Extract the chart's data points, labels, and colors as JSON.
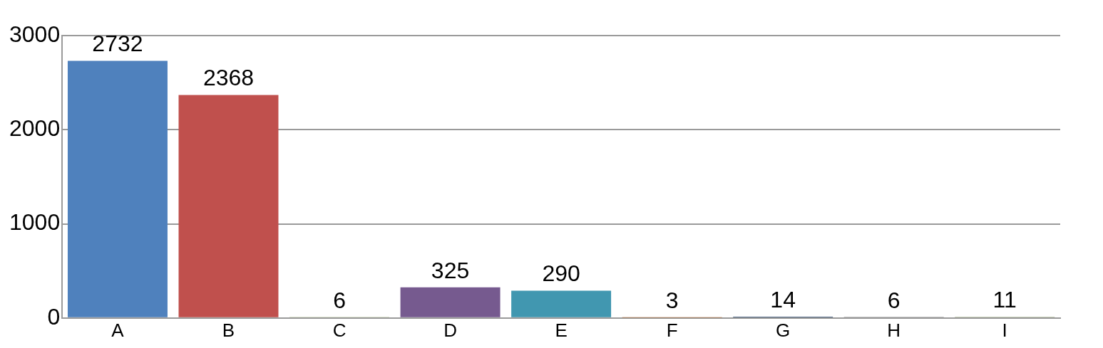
{
  "chart_data": {
    "type": "bar",
    "categories": [
      "A",
      "B",
      "C",
      "D",
      "E",
      "F",
      "G",
      "H",
      "I"
    ],
    "values": [
      2732,
      2368,
      6,
      325,
      290,
      3,
      14,
      6,
      11
    ],
    "colors": [
      "#4f81bd",
      "#c0504d",
      "#76923c",
      "#765a8f",
      "#4197b0",
      "#a9642e",
      "#17375e",
      "#000000",
      "#8c9c6e"
    ],
    "ylim": [
      0,
      3000
    ],
    "yticks": [
      0,
      1000,
      2000,
      3000
    ],
    "grid": "y",
    "legend": false,
    "data_labels": true
  }
}
